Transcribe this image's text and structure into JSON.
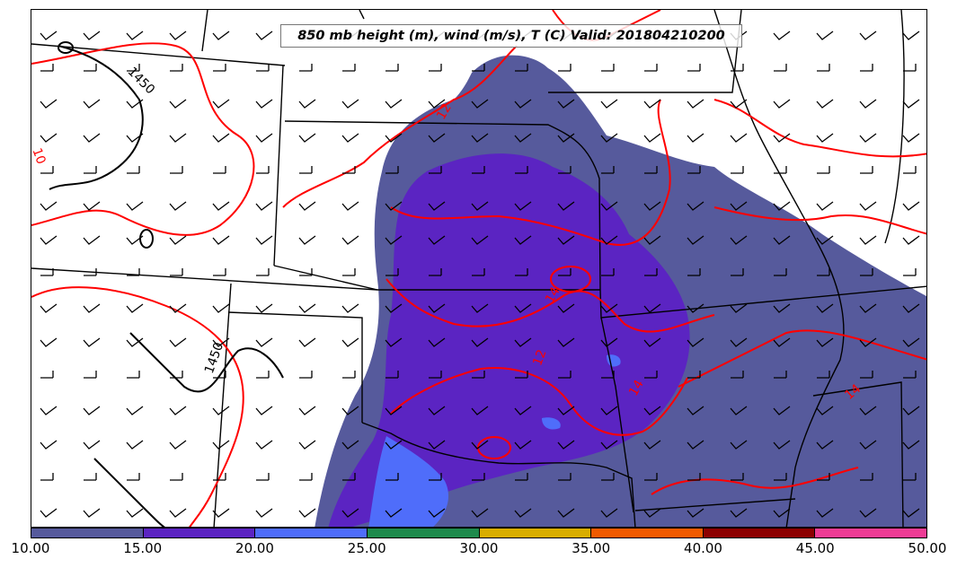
{
  "map": {
    "title": "850 mb height (m), wind (m/s), T (C) Valid: 201804210200",
    "product": {
      "height_units": "m",
      "wind_units": "m/s",
      "temperature_units": "C",
      "valid_time": "201804210200"
    },
    "height_contour_labels": [
      "1450",
      "1450"
    ],
    "temperature_contour_labels": [
      "10",
      "12",
      "12",
      "14",
      "14",
      "14"
    ],
    "colors": {
      "band_10_15": "#565a9c",
      "band_15_20": "#5b24c2",
      "band_20_25": "#4f6dfa",
      "band_25_30": "#1f8a4c",
      "band_30_35": "#d8ad00",
      "band_35_40": "#f05a00",
      "band_40_45": "#8c0000",
      "band_45_50": "#ee3c95",
      "temperature_contours": "#ff0000",
      "height_contours": "#000000",
      "wind_barbs": "#000000"
    }
  },
  "colorbar": {
    "ticks": [
      "10.00",
      "15.00",
      "20.00",
      "25.00",
      "30.00",
      "35.00",
      "40.00",
      "45.00",
      "50.00"
    ],
    "colors": [
      "#565a9c",
      "#5b24c2",
      "#4f6dfa",
      "#1f8a4c",
      "#d8ad00",
      "#f05a00",
      "#8c0000",
      "#ee3c95"
    ]
  }
}
